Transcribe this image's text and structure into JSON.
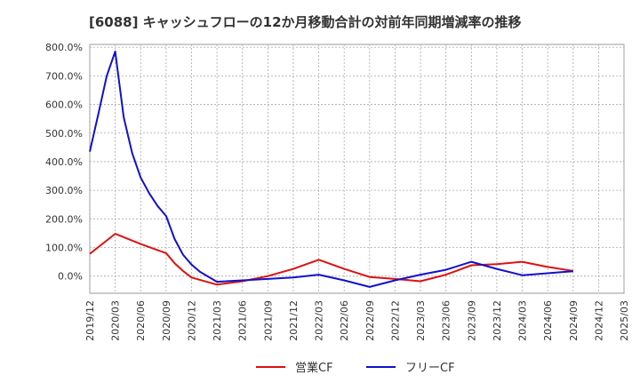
{
  "chart_data": {
    "type": "line",
    "title": "[6088]  キャッシュフローの12か月移動合計の対前年同期増減率の推移",
    "xlabel": "",
    "ylabel": "",
    "ylim": [
      -60,
      810
    ],
    "y_ticks": [
      0,
      100,
      200,
      300,
      400,
      500,
      600,
      700,
      800
    ],
    "y_tick_labels": [
      "0.0%",
      "100.0%",
      "200.0%",
      "300.0%",
      "400.0%",
      "500.0%",
      "600.0%",
      "700.0%",
      "800.0%"
    ],
    "x_ticks": [
      "2019/12",
      "2020/03",
      "2020/06",
      "2020/09",
      "2020/12",
      "2021/03",
      "2021/06",
      "2021/09",
      "2021/12",
      "2022/03",
      "2022/06",
      "2022/09",
      "2022/12",
      "2023/03",
      "2023/06",
      "2023/09",
      "2023/12",
      "2024/03",
      "2024/06",
      "2024/09",
      "2024/12",
      "2025/03"
    ],
    "grid": true,
    "legend_position": "bottom",
    "series": [
      {
        "name": "営業CF",
        "color": "#dd1111",
        "points": [
          [
            0,
            78
          ],
          [
            3,
            148
          ],
          [
            6,
            112
          ],
          [
            9,
            80
          ],
          [
            10,
            45
          ],
          [
            11,
            18
          ],
          [
            12,
            -5
          ],
          [
            15,
            -30
          ],
          [
            18,
            -18
          ],
          [
            21,
            0
          ],
          [
            24,
            25
          ],
          [
            27,
            57
          ],
          [
            30,
            25
          ],
          [
            33,
            -3
          ],
          [
            36,
            -10
          ],
          [
            39,
            -18
          ],
          [
            42,
            5
          ],
          [
            45,
            38
          ],
          [
            48,
            42
          ],
          [
            51,
            50
          ],
          [
            54,
            32
          ],
          [
            57,
            18
          ]
        ]
      },
      {
        "name": "フリーCF",
        "color": "#1111cc",
        "points": [
          [
            0,
            435
          ],
          [
            1,
            565
          ],
          [
            2,
            700
          ],
          [
            3,
            785
          ],
          [
            4,
            555
          ],
          [
            5,
            430
          ],
          [
            6,
            345
          ],
          [
            7,
            290
          ],
          [
            8,
            245
          ],
          [
            9,
            210
          ],
          [
            10,
            130
          ],
          [
            11,
            75
          ],
          [
            12,
            40
          ],
          [
            13,
            15
          ],
          [
            15,
            -20
          ],
          [
            18,
            -15
          ],
          [
            21,
            -10
          ],
          [
            24,
            -5
          ],
          [
            27,
            5
          ],
          [
            30,
            -15
          ],
          [
            33,
            -38
          ],
          [
            36,
            -15
          ],
          [
            39,
            5
          ],
          [
            42,
            22
          ],
          [
            45,
            50
          ],
          [
            48,
            25
          ],
          [
            51,
            3
          ],
          [
            54,
            10
          ],
          [
            57,
            17
          ]
        ]
      }
    ]
  }
}
